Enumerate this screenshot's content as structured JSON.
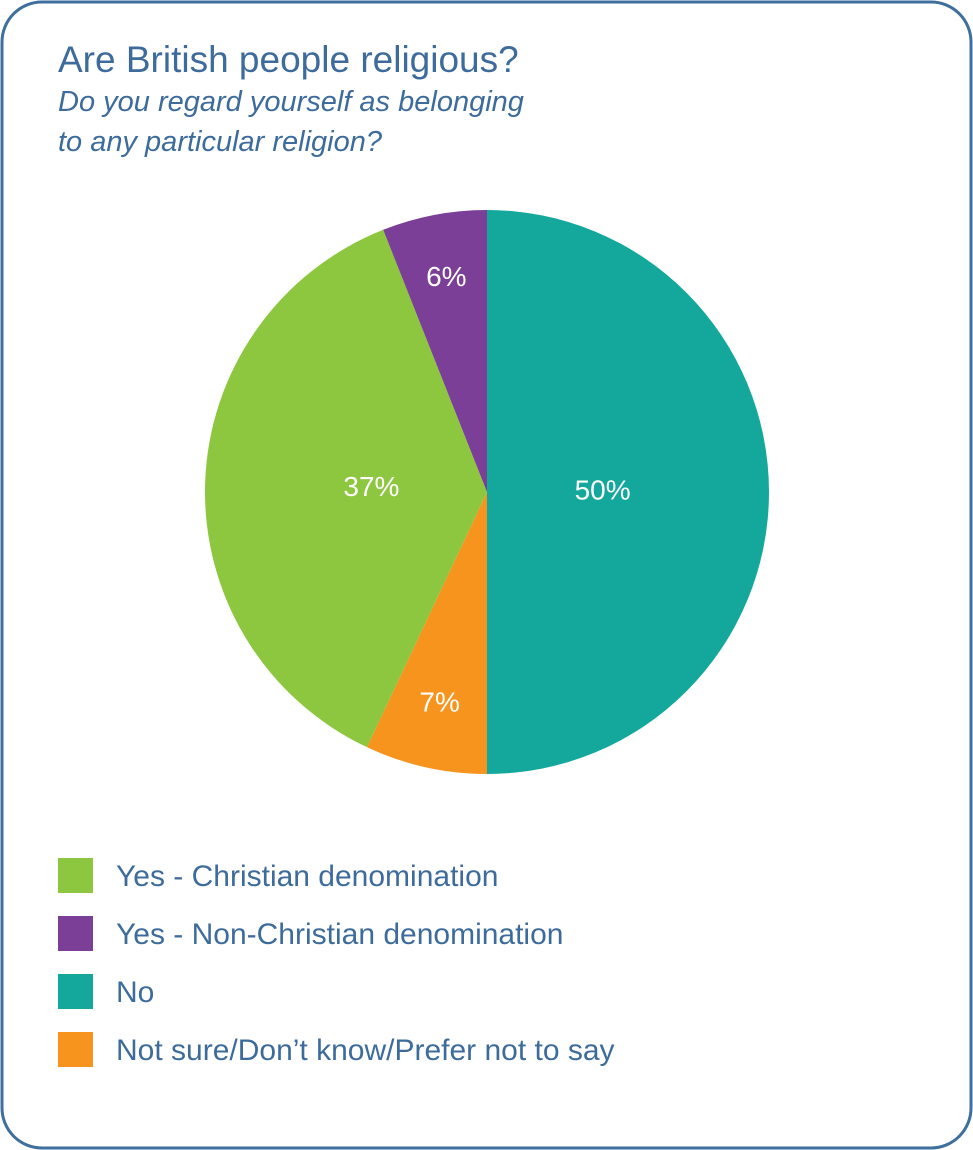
{
  "chart_data": {
    "type": "pie",
    "title": "Are British people religious?",
    "subtitle": [
      "Do you regard yourself as belonging",
      "to any particular religion?"
    ],
    "categories": [
      "Yes - Christian denomination",
      "Yes - Non-Christian denomination",
      "No",
      "Not sure/Don’t know/Prefer not to say"
    ],
    "values": [
      37,
      6,
      50,
      7
    ],
    "value_labels": [
      "37%",
      "6%",
      "50%",
      "7%"
    ],
    "colors": [
      "#8dc63f",
      "#7b3f98",
      "#14a89d",
      "#f7941d"
    ],
    "legend": "bottom-left"
  }
}
